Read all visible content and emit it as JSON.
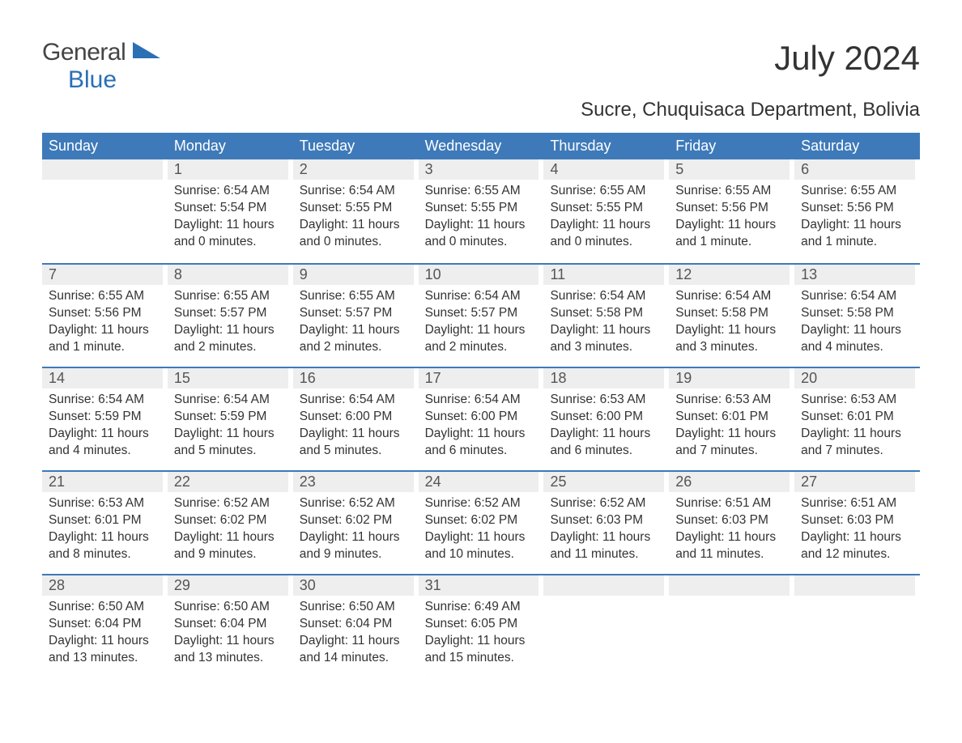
{
  "logo": {
    "text_general": "General",
    "text_blue": "Blue",
    "wedge_color": "#2b6fb5"
  },
  "title": "July 2024",
  "subtitle": "Sucre, Chuquisaca Department, Bolivia",
  "colors": {
    "header_bg": "#3e7ab9",
    "header_text": "#ffffff",
    "daynum_bg": "#eeeeee",
    "week_border": "#3e7ab9",
    "body_text": "#333333",
    "logo_blue": "#2b6fb5",
    "logo_gray": "#444444",
    "page_bg": "#ffffff"
  },
  "weekday_headers": [
    "Sunday",
    "Monday",
    "Tuesday",
    "Wednesday",
    "Thursday",
    "Friday",
    "Saturday"
  ],
  "weeks": [
    [
      null,
      {
        "n": "1",
        "sr": "Sunrise: 6:54 AM",
        "ss": "Sunset: 5:54 PM",
        "dl": "Daylight: 11 hours and 0 minutes."
      },
      {
        "n": "2",
        "sr": "Sunrise: 6:54 AM",
        "ss": "Sunset: 5:55 PM",
        "dl": "Daylight: 11 hours and 0 minutes."
      },
      {
        "n": "3",
        "sr": "Sunrise: 6:55 AM",
        "ss": "Sunset: 5:55 PM",
        "dl": "Daylight: 11 hours and 0 minutes."
      },
      {
        "n": "4",
        "sr": "Sunrise: 6:55 AM",
        "ss": "Sunset: 5:55 PM",
        "dl": "Daylight: 11 hours and 0 minutes."
      },
      {
        "n": "5",
        "sr": "Sunrise: 6:55 AM",
        "ss": "Sunset: 5:56 PM",
        "dl": "Daylight: 11 hours and 1 minute."
      },
      {
        "n": "6",
        "sr": "Sunrise: 6:55 AM",
        "ss": "Sunset: 5:56 PM",
        "dl": "Daylight: 11 hours and 1 minute."
      }
    ],
    [
      {
        "n": "7",
        "sr": "Sunrise: 6:55 AM",
        "ss": "Sunset: 5:56 PM",
        "dl": "Daylight: 11 hours and 1 minute."
      },
      {
        "n": "8",
        "sr": "Sunrise: 6:55 AM",
        "ss": "Sunset: 5:57 PM",
        "dl": "Daylight: 11 hours and 2 minutes."
      },
      {
        "n": "9",
        "sr": "Sunrise: 6:55 AM",
        "ss": "Sunset: 5:57 PM",
        "dl": "Daylight: 11 hours and 2 minutes."
      },
      {
        "n": "10",
        "sr": "Sunrise: 6:54 AM",
        "ss": "Sunset: 5:57 PM",
        "dl": "Daylight: 11 hours and 2 minutes."
      },
      {
        "n": "11",
        "sr": "Sunrise: 6:54 AM",
        "ss": "Sunset: 5:58 PM",
        "dl": "Daylight: 11 hours and 3 minutes."
      },
      {
        "n": "12",
        "sr": "Sunrise: 6:54 AM",
        "ss": "Sunset: 5:58 PM",
        "dl": "Daylight: 11 hours and 3 minutes."
      },
      {
        "n": "13",
        "sr": "Sunrise: 6:54 AM",
        "ss": "Sunset: 5:58 PM",
        "dl": "Daylight: 11 hours and 4 minutes."
      }
    ],
    [
      {
        "n": "14",
        "sr": "Sunrise: 6:54 AM",
        "ss": "Sunset: 5:59 PM",
        "dl": "Daylight: 11 hours and 4 minutes."
      },
      {
        "n": "15",
        "sr": "Sunrise: 6:54 AM",
        "ss": "Sunset: 5:59 PM",
        "dl": "Daylight: 11 hours and 5 minutes."
      },
      {
        "n": "16",
        "sr": "Sunrise: 6:54 AM",
        "ss": "Sunset: 6:00 PM",
        "dl": "Daylight: 11 hours and 5 minutes."
      },
      {
        "n": "17",
        "sr": "Sunrise: 6:54 AM",
        "ss": "Sunset: 6:00 PM",
        "dl": "Daylight: 11 hours and 6 minutes."
      },
      {
        "n": "18",
        "sr": "Sunrise: 6:53 AM",
        "ss": "Sunset: 6:00 PM",
        "dl": "Daylight: 11 hours and 6 minutes."
      },
      {
        "n": "19",
        "sr": "Sunrise: 6:53 AM",
        "ss": "Sunset: 6:01 PM",
        "dl": "Daylight: 11 hours and 7 minutes."
      },
      {
        "n": "20",
        "sr": "Sunrise: 6:53 AM",
        "ss": "Sunset: 6:01 PM",
        "dl": "Daylight: 11 hours and 7 minutes."
      }
    ],
    [
      {
        "n": "21",
        "sr": "Sunrise: 6:53 AM",
        "ss": "Sunset: 6:01 PM",
        "dl": "Daylight: 11 hours and 8 minutes."
      },
      {
        "n": "22",
        "sr": "Sunrise: 6:52 AM",
        "ss": "Sunset: 6:02 PM",
        "dl": "Daylight: 11 hours and 9 minutes."
      },
      {
        "n": "23",
        "sr": "Sunrise: 6:52 AM",
        "ss": "Sunset: 6:02 PM",
        "dl": "Daylight: 11 hours and 9 minutes."
      },
      {
        "n": "24",
        "sr": "Sunrise: 6:52 AM",
        "ss": "Sunset: 6:02 PM",
        "dl": "Daylight: 11 hours and 10 minutes."
      },
      {
        "n": "25",
        "sr": "Sunrise: 6:52 AM",
        "ss": "Sunset: 6:03 PM",
        "dl": "Daylight: 11 hours and 11 minutes."
      },
      {
        "n": "26",
        "sr": "Sunrise: 6:51 AM",
        "ss": "Sunset: 6:03 PM",
        "dl": "Daylight: 11 hours and 11 minutes."
      },
      {
        "n": "27",
        "sr": "Sunrise: 6:51 AM",
        "ss": "Sunset: 6:03 PM",
        "dl": "Daylight: 11 hours and 12 minutes."
      }
    ],
    [
      {
        "n": "28",
        "sr": "Sunrise: 6:50 AM",
        "ss": "Sunset: 6:04 PM",
        "dl": "Daylight: 11 hours and 13 minutes."
      },
      {
        "n": "29",
        "sr": "Sunrise: 6:50 AM",
        "ss": "Sunset: 6:04 PM",
        "dl": "Daylight: 11 hours and 13 minutes."
      },
      {
        "n": "30",
        "sr": "Sunrise: 6:50 AM",
        "ss": "Sunset: 6:04 PM",
        "dl": "Daylight: 11 hours and 14 minutes."
      },
      {
        "n": "31",
        "sr": "Sunrise: 6:49 AM",
        "ss": "Sunset: 6:05 PM",
        "dl": "Daylight: 11 hours and 15 minutes."
      },
      null,
      null,
      null
    ]
  ]
}
